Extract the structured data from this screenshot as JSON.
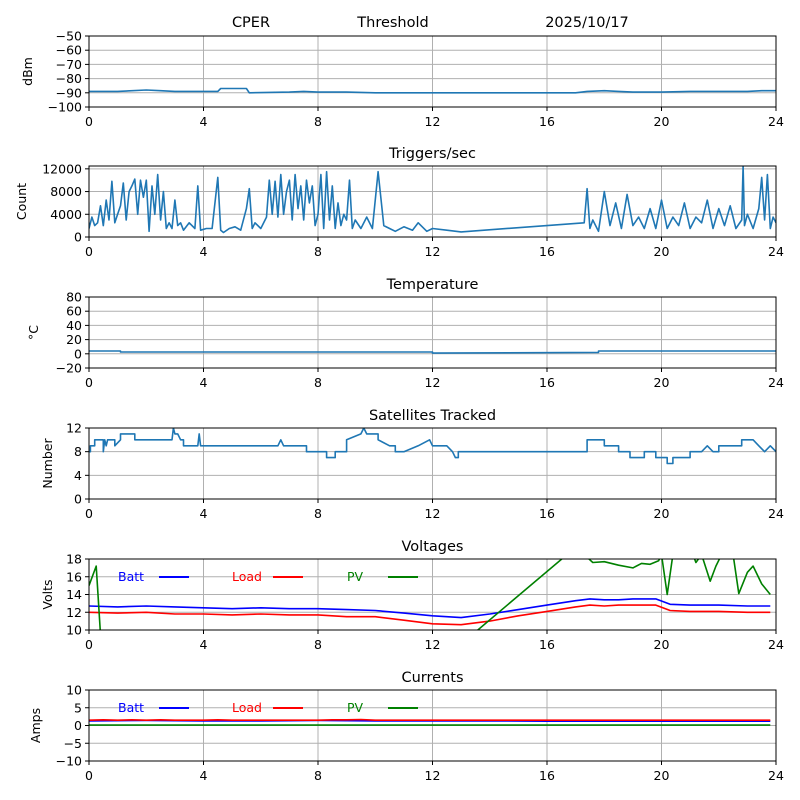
{
  "header": {
    "site": "CPER",
    "mode": "Threshold",
    "date": "2025/10/17"
  },
  "colors": {
    "series_default": "#1f77b4",
    "batt": "#0000ff",
    "load": "#ff0000",
    "pv": "#008000",
    "grid": "#b0b0b0"
  },
  "chart_data": [
    {
      "id": "threshold",
      "type": "line",
      "title": "",
      "xlabel": "",
      "ylabel": "dBm",
      "xlim": [
        0,
        24
      ],
      "ylim": [
        -100,
        -50
      ],
      "xticks": [
        0,
        4,
        8,
        12,
        16,
        20,
        24
      ],
      "yticks": [
        -100,
        -90,
        -80,
        -70,
        -60,
        -50
      ],
      "ytick_labels": [
        "−100",
        "−90",
        "−80",
        "−70",
        "−60",
        "−50"
      ],
      "grid": true,
      "series": [
        {
          "name": "Threshold",
          "color": "#1f77b4",
          "x": [
            0,
            1,
            2,
            2.5,
            3,
            4,
            4.5,
            4.6,
            5.5,
            5.6,
            7,
            7.5,
            8,
            9,
            10,
            11,
            12,
            13,
            14,
            15,
            16,
            17,
            17.4,
            18,
            18.5,
            19,
            20,
            21,
            22,
            23,
            23.5,
            24
          ],
          "y": [
            -89,
            -89,
            -88,
            -88.5,
            -89,
            -89,
            -89,
            -87,
            -87,
            -90,
            -89.5,
            -89,
            -89.5,
            -89.5,
            -90,
            -90,
            -90,
            -90,
            -90,
            -90,
            -90,
            -90,
            -89,
            -88.5,
            -89,
            -89.5,
            -89.5,
            -89,
            -89,
            -89,
            -88.5,
            -88.5
          ]
        }
      ]
    },
    {
      "id": "triggers",
      "type": "line",
      "title": "Triggers/sec",
      "xlabel": "",
      "ylabel": "Count",
      "xlim": [
        0,
        24
      ],
      "ylim": [
        0,
        12500
      ],
      "xticks": [
        0,
        4,
        8,
        12,
        16,
        20,
        24
      ],
      "yticks": [
        0,
        4000,
        8000,
        12000
      ],
      "ytick_labels": [
        "0",
        "4000",
        "8000",
        "12000"
      ],
      "grid": true,
      "series": [
        {
          "name": "Triggers",
          "color": "#1f77b4",
          "x": [
            0,
            0.1,
            0.2,
            0.3,
            0.4,
            0.5,
            0.6,
            0.7,
            0.8,
            0.9,
            1.0,
            1.1,
            1.2,
            1.3,
            1.4,
            1.5,
            1.6,
            1.7,
            1.8,
            1.9,
            2.0,
            2.1,
            2.2,
            2.3,
            2.4,
            2.5,
            2.6,
            2.7,
            2.8,
            2.9,
            3.0,
            3.1,
            3.2,
            3.3,
            3.5,
            3.7,
            3.8,
            3.9,
            4.1,
            4.3,
            4.5,
            4.6,
            4.7,
            4.9,
            5.1,
            5.3,
            5.5,
            5.6,
            5.7,
            5.8,
            6.0,
            6.2,
            6.3,
            6.4,
            6.5,
            6.6,
            6.7,
            6.8,
            6.9,
            7.0,
            7.1,
            7.2,
            7.3,
            7.4,
            7.5,
            7.6,
            7.7,
            7.8,
            7.9,
            8.0,
            8.1,
            8.2,
            8.3,
            8.4,
            8.5,
            8.6,
            8.7,
            8.8,
            8.9,
            9.0,
            9.1,
            9.2,
            9.3,
            9.5,
            9.7,
            9.9,
            10.1,
            10.3,
            10.5,
            10.7,
            11.0,
            11.3,
            11.5,
            11.8,
            12.0,
            12.5,
            13.0,
            17.3,
            17.4,
            17.5,
            17.6,
            17.8,
            18.0,
            18.2,
            18.4,
            18.6,
            18.8,
            19.0,
            19.2,
            19.4,
            19.6,
            19.8,
            20.0,
            20.2,
            20.4,
            20.6,
            20.8,
            21.0,
            21.2,
            21.4,
            21.6,
            21.8,
            22.0,
            22.2,
            22.4,
            22.6,
            22.8,
            22.85,
            22.9,
            23.0,
            23.2,
            23.4,
            23.5,
            23.6,
            23.7,
            23.8,
            23.9,
            24.0
          ],
          "y": [
            1500,
            3500,
            2000,
            2500,
            5500,
            2000,
            6500,
            3000,
            9800,
            2500,
            4000,
            5500,
            9500,
            3000,
            8000,
            9000,
            10200,
            4000,
            10000,
            7000,
            10000,
            1000,
            9000,
            4000,
            11000,
            3000,
            8000,
            1500,
            2500,
            1500,
            6500,
            2000,
            2500,
            1200,
            2500,
            1500,
            9000,
            1200,
            1500,
            1500,
            10500,
            1200,
            800,
            1500,
            1800,
            1200,
            5000,
            8500,
            1500,
            2500,
            1500,
            3500,
            10000,
            4000,
            9800,
            3500,
            11000,
            4000,
            8000,
            10000,
            3000,
            11000,
            5000,
            9000,
            3000,
            10000,
            6000,
            9000,
            2000,
            4000,
            11000,
            1500,
            11500,
            3000,
            9000,
            1500,
            6000,
            2000,
            4000,
            3000,
            10000,
            1500,
            3000,
            1500,
            3500,
            1500,
            11500,
            2000,
            1500,
            1000,
            1800,
            1200,
            2500,
            1000,
            1500,
            1200,
            900,
            2500,
            8500,
            1500,
            3000,
            1000,
            8000,
            2000,
            6000,
            1500,
            7500,
            2000,
            3500,
            1500,
            5000,
            1500,
            6500,
            1500,
            3500,
            2000,
            6000,
            1500,
            3500,
            2500,
            6500,
            1500,
            5000,
            2000,
            5500,
            1500,
            3000,
            12500,
            2000,
            4000,
            1500,
            5000,
            10500,
            3000,
            11000,
            1500,
            3500,
            2500
          ]
        }
      ]
    },
    {
      "id": "temperature",
      "type": "line",
      "title": "Temperature",
      "xlabel": "",
      "ylabel": "°C",
      "xlim": [
        0,
        24
      ],
      "ylim": [
        -20,
        80
      ],
      "xticks": [
        0,
        4,
        8,
        12,
        16,
        20,
        24
      ],
      "yticks": [
        -20,
        0,
        20,
        40,
        60,
        80
      ],
      "ytick_labels": [
        "−20",
        "0",
        "20",
        "40",
        "60",
        "80"
      ],
      "grid": true,
      "series": [
        {
          "name": "Temperature",
          "color": "#1f77b4",
          "x": [
            0,
            1.1,
            1.1,
            12.0,
            12.0,
            17.8,
            17.8,
            24
          ],
          "y": [
            4,
            4,
            2.5,
            2.5,
            1,
            2,
            4,
            4
          ]
        }
      ]
    },
    {
      "id": "satellites",
      "type": "line",
      "title": "Satellites Tracked",
      "xlabel": "",
      "ylabel": "Number",
      "xlim": [
        0,
        24
      ],
      "ylim": [
        0,
        12
      ],
      "xticks": [
        0,
        4,
        8,
        12,
        16,
        20,
        24
      ],
      "yticks": [
        0,
        4,
        8,
        12
      ],
      "ytick_labels": [
        "0",
        "4",
        "8",
        "12"
      ],
      "grid": true,
      "series": [
        {
          "name": "Satellites",
          "color": "#1f77b4",
          "x": [
            0,
            0.05,
            0.05,
            0.2,
            0.2,
            0.5,
            0.5,
            0.55,
            0.6,
            0.65,
            0.65,
            0.9,
            0.9,
            1.1,
            1.1,
            1.6,
            1.6,
            2.9,
            2.95,
            3.0,
            3.1,
            3.2,
            3.3,
            3.3,
            3.8,
            3.85,
            3.9,
            4.0,
            4.5,
            5.5,
            5.6,
            6.6,
            6.7,
            6.8,
            7.6,
            7.6,
            8.3,
            8.3,
            8.6,
            8.6,
            9.0,
            9.0,
            9.5,
            9.6,
            9.7,
            10.1,
            10.1,
            10.5,
            10.7,
            10.7,
            11.0,
            11.5,
            11.9,
            12.0,
            12.4,
            12.5,
            12.7,
            12.8,
            12.9,
            12.9,
            17.4,
            17.4,
            18.0,
            18.0,
            18.5,
            18.5,
            18.9,
            18.9,
            19.4,
            19.4,
            19.8,
            19.8,
            20.2,
            20.2,
            20.4,
            20.4,
            21.0,
            21.0,
            21.4,
            21.6,
            21.8,
            22.0,
            22.0,
            22.8,
            22.8,
            23.2,
            23.4,
            23.6,
            23.8,
            24
          ],
          "y": [
            8,
            8,
            9,
            9,
            10,
            10,
            8,
            10,
            9,
            10,
            10,
            10,
            9,
            10,
            11,
            11,
            10,
            10,
            12,
            11,
            11,
            10,
            10,
            9,
            9,
            11,
            9,
            9,
            9,
            9,
            9,
            9,
            10,
            9,
            9,
            8,
            8,
            7,
            7,
            8,
            8,
            10,
            11,
            12,
            11,
            11,
            10,
            9,
            9,
            8,
            8,
            9,
            10,
            9,
            9,
            9,
            8,
            7,
            7,
            8,
            8,
            10,
            10,
            9,
            9,
            8,
            8,
            7,
            7,
            8,
            8,
            7,
            7,
            6,
            6,
            7,
            7,
            8,
            8,
            9,
            8,
            8,
            9,
            9,
            10,
            10,
            9,
            8,
            9,
            8
          ]
        }
      ]
    },
    {
      "id": "voltages",
      "type": "line",
      "title": "Voltages",
      "xlabel": "",
      "ylabel": "Volts",
      "xlim": [
        0,
        24
      ],
      "ylim": [
        10,
        18
      ],
      "xticks": [
        0,
        4,
        8,
        12,
        16,
        20,
        24
      ],
      "yticks": [
        10,
        12,
        14,
        16,
        18
      ],
      "ytick_labels": [
        "10",
        "12",
        "14",
        "16",
        "18"
      ],
      "grid": true,
      "legend": {
        "placement": "top",
        "inline": true,
        "entries": [
          "Batt",
          "Load",
          "PV"
        ]
      },
      "series": [
        {
          "name": "Batt",
          "color": "#0000ff",
          "x": [
            0,
            1,
            2,
            3,
            4,
            5,
            6,
            7,
            8,
            9,
            10,
            11,
            12,
            13,
            14,
            15,
            16,
            17,
            17.5,
            18,
            18.5,
            19,
            19.5,
            19.8,
            20.3,
            21,
            22,
            23,
            23.8
          ],
          "y": [
            12.7,
            12.6,
            12.7,
            12.6,
            12.5,
            12.4,
            12.5,
            12.4,
            12.4,
            12.3,
            12.2,
            11.9,
            11.6,
            11.4,
            11.8,
            12.3,
            12.8,
            13.3,
            13.5,
            13.4,
            13.4,
            13.5,
            13.5,
            13.5,
            12.9,
            12.8,
            12.8,
            12.7,
            12.7
          ]
        },
        {
          "name": "Load",
          "color": "#ff0000",
          "x": [
            0,
            1,
            2,
            3,
            4,
            5,
            6,
            7,
            8,
            9,
            10,
            11,
            12,
            13,
            14,
            15,
            16,
            17,
            17.5,
            18,
            18.5,
            19,
            19.5,
            19.8,
            20.3,
            21,
            22,
            23,
            23.8
          ],
          "y": [
            12.0,
            11.9,
            12.0,
            11.8,
            11.8,
            11.7,
            11.8,
            11.7,
            11.7,
            11.5,
            11.5,
            11.1,
            10.7,
            10.6,
            11.0,
            11.6,
            12.1,
            12.6,
            12.8,
            12.7,
            12.8,
            12.8,
            12.8,
            12.8,
            12.2,
            12.1,
            12.1,
            12.0,
            12.0
          ]
        },
        {
          "name": "PV",
          "color": "#008000",
          "x": [
            0,
            0.25,
            0.4,
            13.4,
            16.7,
            17.3,
            17.6,
            18.0,
            18.5,
            19.0,
            19.3,
            19.6,
            19.9,
            20.0,
            20.2,
            20.4,
            20.6,
            21.0,
            21.1,
            21.2,
            21.4,
            21.7,
            21.9,
            22.1,
            22.5,
            22.7,
            23.0,
            23.2,
            23.5,
            23.8
          ],
          "y": [
            15.0,
            17.2,
            9.5,
            9.5,
            18.5,
            18.5,
            17.6,
            17.7,
            17.3,
            17.0,
            17.5,
            17.4,
            17.8,
            18.5,
            14.0,
            18.5,
            18.5,
            18.5,
            18.5,
            17.6,
            18.5,
            15.5,
            17.2,
            18.5,
            18.5,
            14.1,
            16.5,
            17.2,
            15.2,
            14.0
          ]
        }
      ]
    },
    {
      "id": "currents",
      "type": "line",
      "title": "Currents",
      "xlabel": "",
      "ylabel": "Amps",
      "xlim": [
        0,
        24
      ],
      "ylim": [
        -10,
        10
      ],
      "xticks": [
        0,
        4,
        8,
        12,
        16,
        20,
        24
      ],
      "yticks": [
        -10,
        -5,
        0,
        5,
        10
      ],
      "ytick_labels": [
        "−10",
        "−5",
        "0",
        "5",
        "10"
      ],
      "grid": true,
      "legend": {
        "placement": "top",
        "inline": true,
        "entries": [
          "Batt",
          "Load",
          "PV"
        ]
      },
      "series": [
        {
          "name": "Batt",
          "color": "#0000ff",
          "x": [
            0,
            2,
            4,
            6,
            8,
            10,
            12,
            14,
            16,
            18,
            20,
            22,
            23.8
          ],
          "y": [
            1.3,
            1.4,
            1.3,
            1.3,
            1.4,
            1.3,
            1.3,
            1.3,
            1.2,
            1.2,
            1.2,
            1.2,
            1.2
          ]
        },
        {
          "name": "Load",
          "color": "#ff0000",
          "x": [
            0,
            0.5,
            1,
            1.5,
            2,
            2.5,
            3,
            3.5,
            4,
            4.5,
            5,
            6,
            7,
            8,
            8.5,
            9,
            9.5,
            10,
            11,
            12,
            13,
            14,
            16,
            18,
            20,
            22,
            23.8
          ],
          "y": [
            1.5,
            1.6,
            1.5,
            1.6,
            1.5,
            1.6,
            1.5,
            1.5,
            1.5,
            1.6,
            1.5,
            1.5,
            1.5,
            1.5,
            1.6,
            1.6,
            1.7,
            1.5,
            1.5,
            1.5,
            1.5,
            1.5,
            1.5,
            1.5,
            1.5,
            1.5,
            1.5
          ]
        },
        {
          "name": "PV",
          "color": "#008000",
          "x": [
            0,
            23.8
          ],
          "y": [
            0.1,
            0.1
          ]
        }
      ]
    }
  ]
}
